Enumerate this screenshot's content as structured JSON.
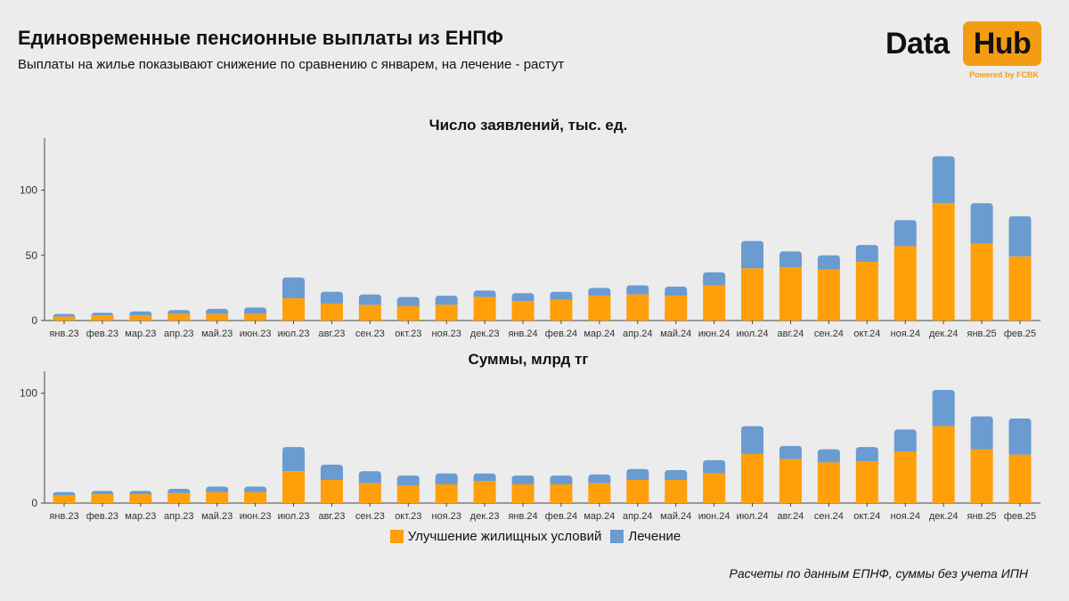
{
  "header": {
    "title": "Единовременные пенсионные выплаты из ЕНПФ",
    "subtitle": "Выплаты на жилье показывают снижение по сравнению с январем, на лечение - растут"
  },
  "logo": {
    "data_text": "Data",
    "hub_text": "Hub",
    "powered_text": "Powered by FCBK",
    "accent_color": "#f39c12"
  },
  "colors": {
    "housing": "#ff9f0a",
    "treatment": "#6a9bd1"
  },
  "legend": {
    "housing_label": "Улучшение жилищных условий",
    "treatment_label": "Лечение"
  },
  "footer": {
    "source": "Расчеты по данным ЕПНФ, суммы без учета ИПН"
  },
  "chart_data": [
    {
      "type": "bar",
      "stacked": true,
      "title": "Число заявлений, тыс. ед.",
      "categories": [
        "янв.23",
        "фев.23",
        "мар.23",
        "апр.23",
        "май.23",
        "июн.23",
        "июл.23",
        "авг.23",
        "сен.23",
        "окт.23",
        "ноя.23",
        "дек.23",
        "янв.24",
        "фев.24",
        "мар.24",
        "апр.24",
        "май.24",
        "июн.24",
        "июл.24",
        "авг.24",
        "сен.24",
        "окт.24",
        "ноя.24",
        "дек.24",
        "янв.25",
        "фев.25"
      ],
      "ylim": [
        0,
        140
      ],
      "yticks": [
        0,
        50,
        100
      ],
      "series": [
        {
          "name": "Улучшение жилищных условий",
          "values": [
            3,
            4,
            4,
            5,
            5,
            5,
            17,
            13,
            12,
            11,
            12,
            18,
            15,
            16,
            19,
            20,
            19,
            27,
            40,
            41,
            39,
            45,
            57,
            90,
            59,
            49
          ]
        },
        {
          "name": "Лечение",
          "values": [
            2,
            2,
            3,
            3,
            4,
            5,
            16,
            9,
            8,
            7,
            7,
            5,
            6,
            6,
            6,
            7,
            7,
            10,
            21,
            12,
            11,
            13,
            20,
            36,
            31,
            31
          ]
        }
      ]
    },
    {
      "type": "bar",
      "stacked": true,
      "title": "Суммы, млрд тг",
      "categories": [
        "янв.23",
        "фев.23",
        "мар.23",
        "апр.23",
        "май.23",
        "июн.23",
        "июл.23",
        "авг.23",
        "сен.23",
        "окт.23",
        "ноя.23",
        "дек.23",
        "янв.24",
        "фев.24",
        "мар.24",
        "апр.24",
        "май.24",
        "июн.24",
        "июл.24",
        "авг.24",
        "сен.24",
        "окт.24",
        "ноя.24",
        "дек.24",
        "янв.25",
        "фев.25"
      ],
      "ylim": [
        0,
        120
      ],
      "yticks": [
        0,
        100
      ],
      "series": [
        {
          "name": "Улучшение жилищных условий",
          "values": [
            7,
            8,
            8,
            9,
            10,
            10,
            29,
            21,
            18,
            16,
            17,
            20,
            17,
            17,
            18,
            21,
            21,
            27,
            45,
            40,
            37,
            38,
            47,
            70,
            49,
            44
          ]
        },
        {
          "name": "Лечение",
          "values": [
            3,
            3,
            3,
            4,
            5,
            5,
            22,
            14,
            11,
            9,
            10,
            7,
            8,
            8,
            8,
            10,
            9,
            12,
            25,
            12,
            12,
            13,
            20,
            33,
            30,
            33
          ]
        }
      ]
    }
  ]
}
